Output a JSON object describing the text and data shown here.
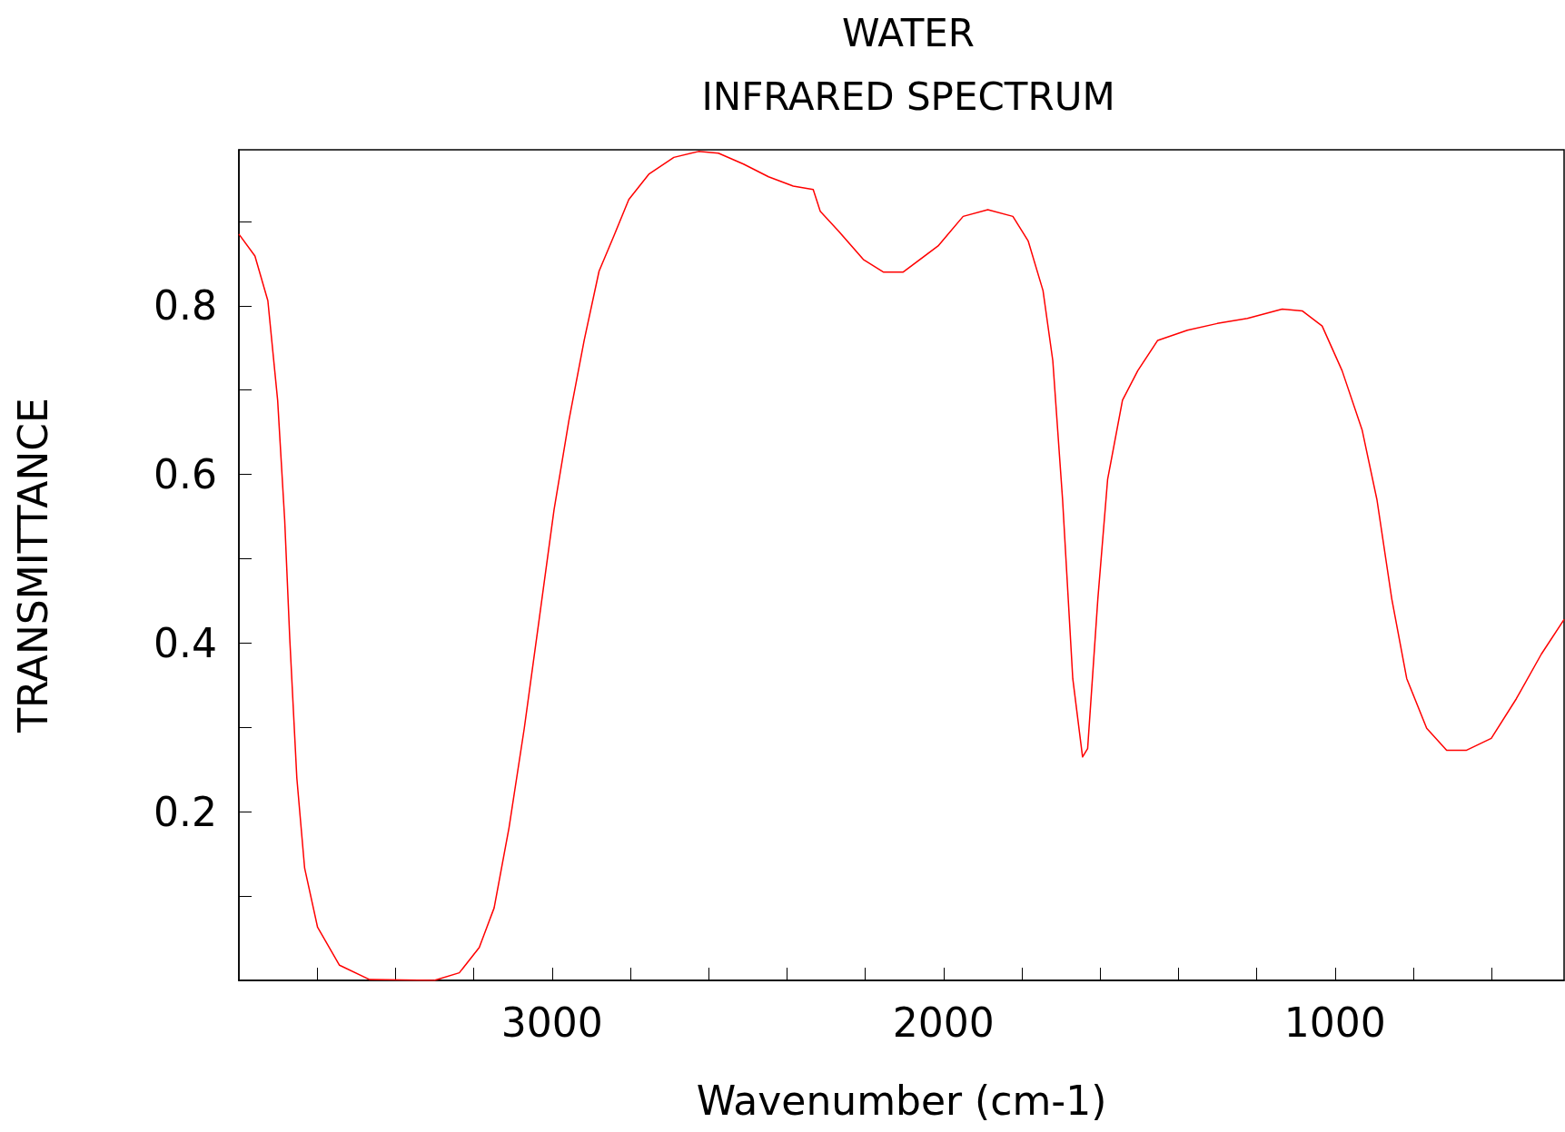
{
  "chart_data": {
    "type": "line",
    "title": "WATER",
    "subtitle": "INFRARED SPECTRUM",
    "xlabel": "Wavenumber (cm-1)",
    "ylabel": "TRANSMITTANCE",
    "xlim": [
      3800,
      415
    ],
    "ylim": [
      0,
      0.985
    ],
    "xticks": [
      {
        "value": 3600,
        "label": null
      },
      {
        "value": 3400,
        "label": null
      },
      {
        "value": 3200,
        "label": null
      },
      3000,
      {
        "value": 2800,
        "label": null
      },
      {
        "value": 2600,
        "label": null
      },
      {
        "value": 2400,
        "label": null
      },
      {
        "value": 2200,
        "label": null
      },
      2000,
      {
        "value": 1800,
        "label": null
      },
      {
        "value": 1600,
        "label": null
      },
      {
        "value": 1400,
        "label": null
      },
      {
        "value": 1200,
        "label": null
      },
      1000,
      {
        "value": 800,
        "label": null
      },
      {
        "value": 600,
        "label": null
      }
    ],
    "yticks": [
      {
        "value": 0.1,
        "label": null
      },
      0.2,
      {
        "value": 0.3,
        "label": null
      },
      0.4,
      {
        "value": 0.5,
        "label": null
      },
      0.6,
      {
        "value": 0.7,
        "label": null
      },
      0.8,
      {
        "value": 0.9,
        "label": null
      }
    ],
    "grid": false,
    "marker": "none",
    "line_style": "solid",
    "series": [
      {
        "color": "#ff0000",
        "x": [
          3800,
          3759,
          3726,
          3701,
          3683,
          3670,
          3652,
          3632,
          3599,
          3543,
          3466,
          3301,
          3237,
          3186,
          3148,
          3110,
          3071,
          3033,
          2995,
          2957,
          2918,
          2880,
          2842,
          2804,
          2753,
          2689,
          2626,
          2575,
          2511,
          2447,
          2384,
          2333,
          2315,
          2269,
          2205,
          2154,
          2103,
          2014,
          1950,
          1887,
          1823,
          1784,
          1746,
          1721,
          1696,
          1670,
          1645,
          1632,
          1606,
          1581,
          1543,
          1504,
          1453,
          1377,
          1301,
          1224,
          1135,
          1084,
          1033,
          982,
          931,
          893,
          855,
          817,
          766,
          715,
          664,
          601,
          537,
          473,
          415
        ],
        "values": [
          0.885,
          0.859,
          0.806,
          0.688,
          0.546,
          0.405,
          0.24,
          0.133,
          0.063,
          0.018,
          0.001,
          0,
          0.009,
          0.039,
          0.086,
          0.181,
          0.299,
          0.428,
          0.558,
          0.664,
          0.759,
          0.841,
          0.883,
          0.926,
          0.956,
          0.976,
          0.983,
          0.981,
          0.968,
          0.953,
          0.942,
          0.938,
          0.912,
          0.889,
          0.855,
          0.84,
          0.84,
          0.871,
          0.906,
          0.914,
          0.906,
          0.877,
          0.818,
          0.735,
          0.57,
          0.358,
          0.265,
          0.275,
          0.452,
          0.594,
          0.688,
          0.723,
          0.759,
          0.771,
          0.779,
          0.785,
          0.796,
          0.794,
          0.776,
          0.723,
          0.653,
          0.57,
          0.452,
          0.358,
          0.299,
          0.273,
          0.273,
          0.287,
          0.334,
          0.387,
          0.428
        ]
      }
    ]
  }
}
